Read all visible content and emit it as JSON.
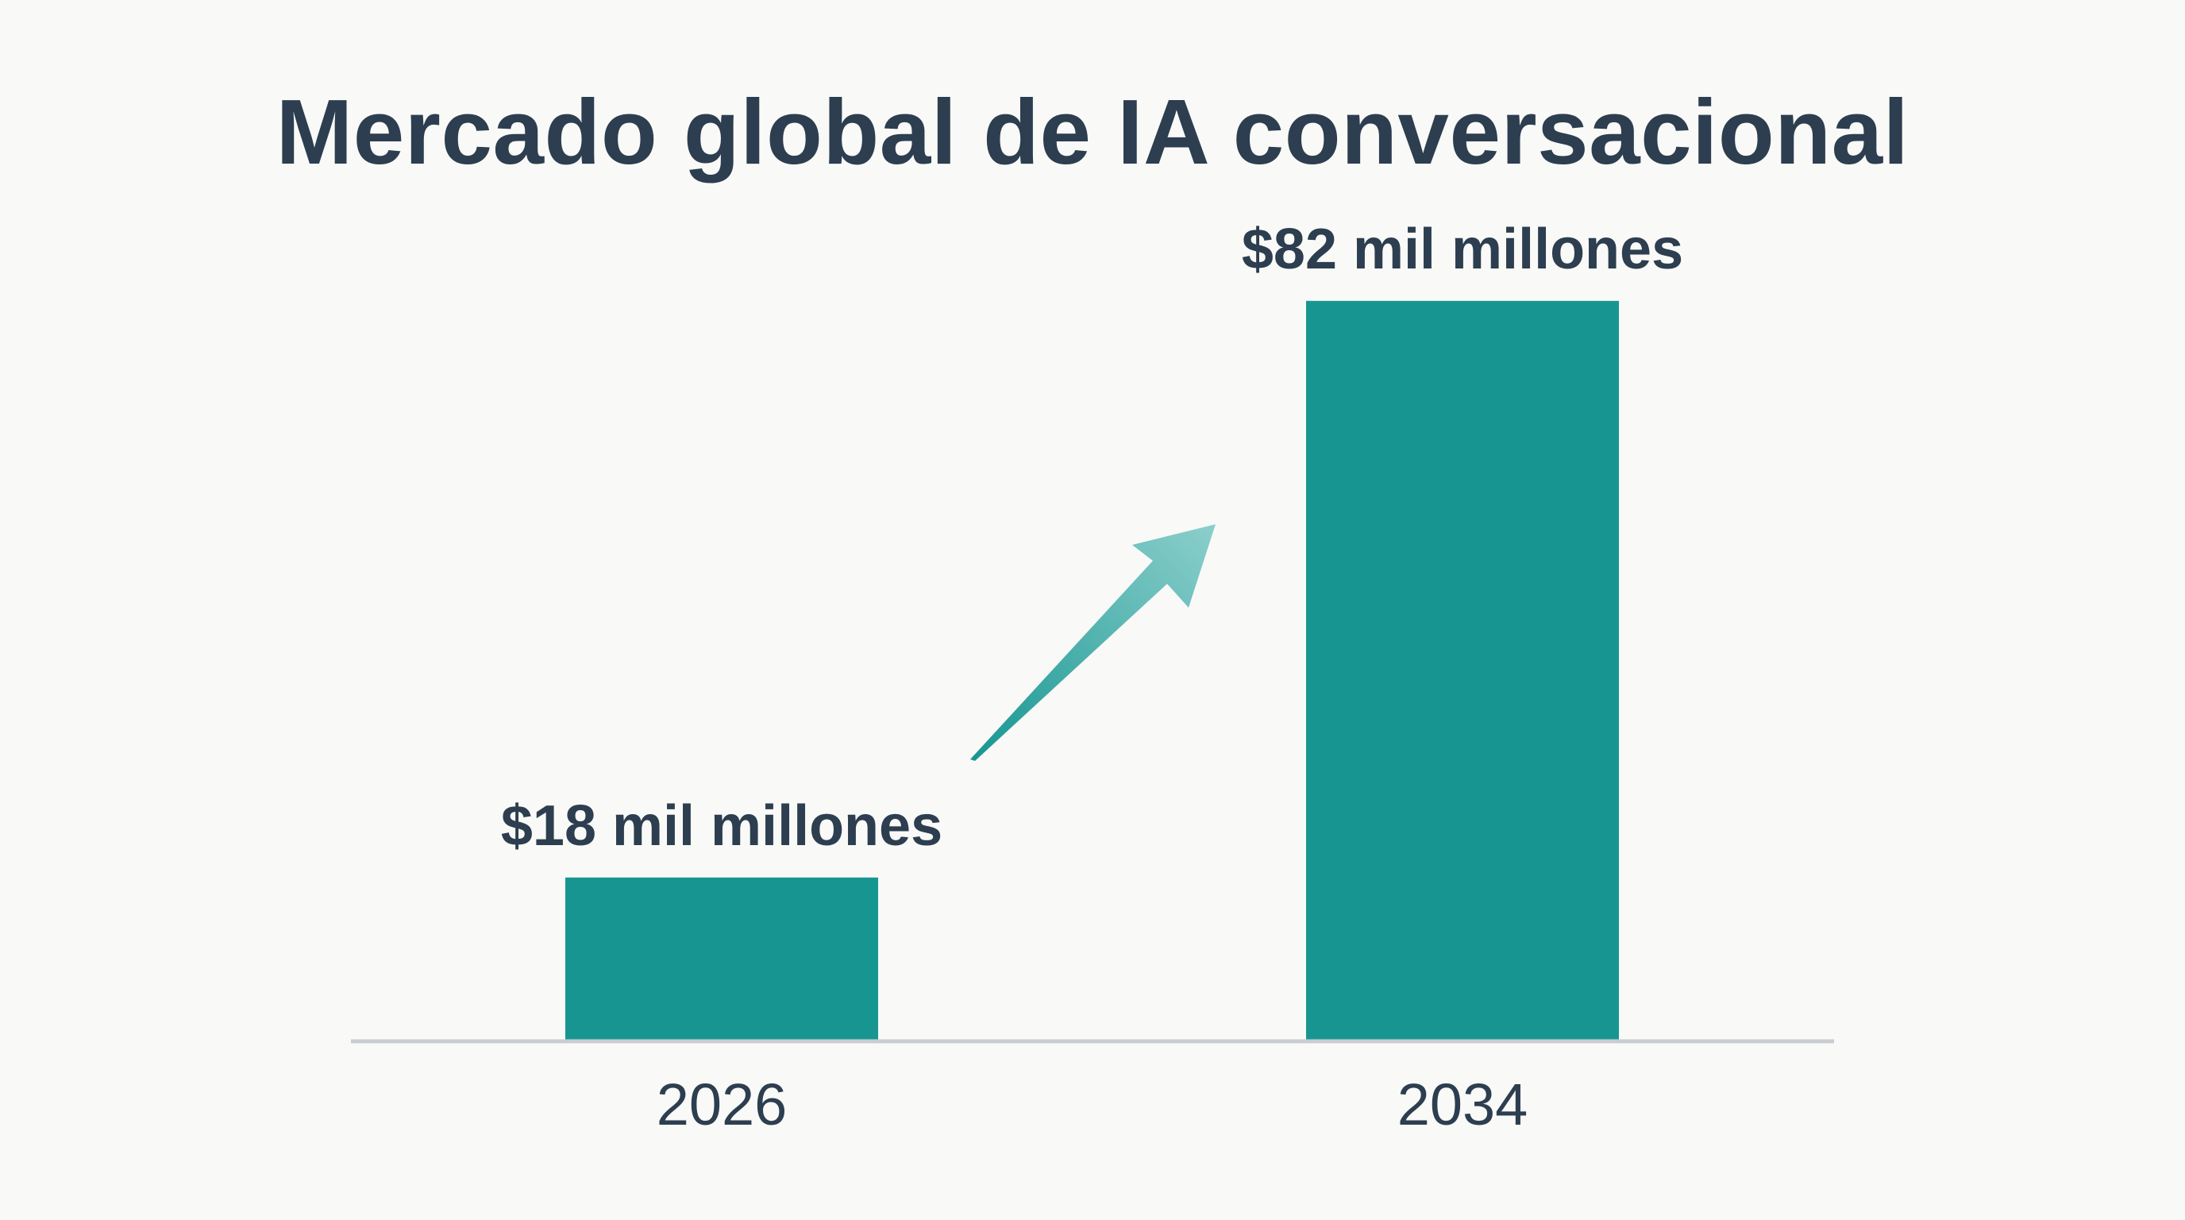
{
  "colors": {
    "background": "#f9f9f7",
    "bar": "#179691",
    "text": "#2c3e4f",
    "axis": "#c9cdd1",
    "arrow": "#6bbfbd"
  },
  "chart_data": {
    "type": "bar",
    "title": "Mercado global de IA conversacional",
    "xlabel": "",
    "ylabel": "",
    "categories": [
      "2026",
      "2034"
    ],
    "values": [
      18,
      82
    ],
    "data_labels": [
      "$18 mil millones",
      "$82 mil millones"
    ],
    "ylim": [
      0,
      96
    ],
    "grid": false,
    "legend": "none",
    "annotation": "arrow-up-right"
  }
}
